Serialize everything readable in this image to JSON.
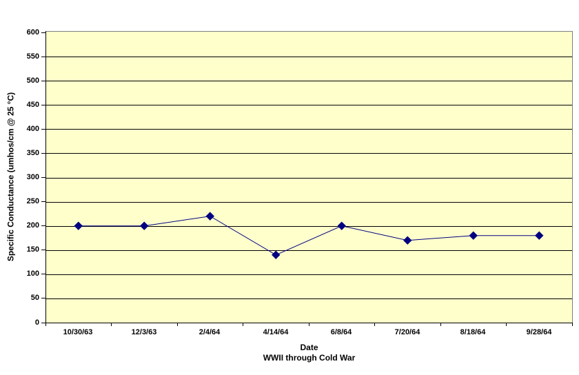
{
  "chart_data": {
    "type": "line",
    "title": "",
    "categories": [
      "10/30/63",
      "12/3/63",
      "2/4/64",
      "4/14/64",
      "6/8/64",
      "7/20/64",
      "8/18/64",
      "9/28/64"
    ],
    "values": [
      200,
      200,
      220,
      140,
      200,
      170,
      180,
      180
    ],
    "xlabel": "Date",
    "xlabel_subtitle": "WWII through Cold War",
    "ylabel": "Specific Conductance (umhos/cm @ 25 °C)",
    "ylim": [
      0,
      600
    ],
    "ytick_step": 50,
    "grid": "horizontal",
    "legend": "none",
    "marker": "diamond",
    "colors": {
      "series": "#000080",
      "plot_bg": "#FFFFCC",
      "gridline": "#000000",
      "axis": "#000000",
      "plot_border": "#808080",
      "page_bg": "#FFFFFF",
      "text": "#000000"
    }
  }
}
